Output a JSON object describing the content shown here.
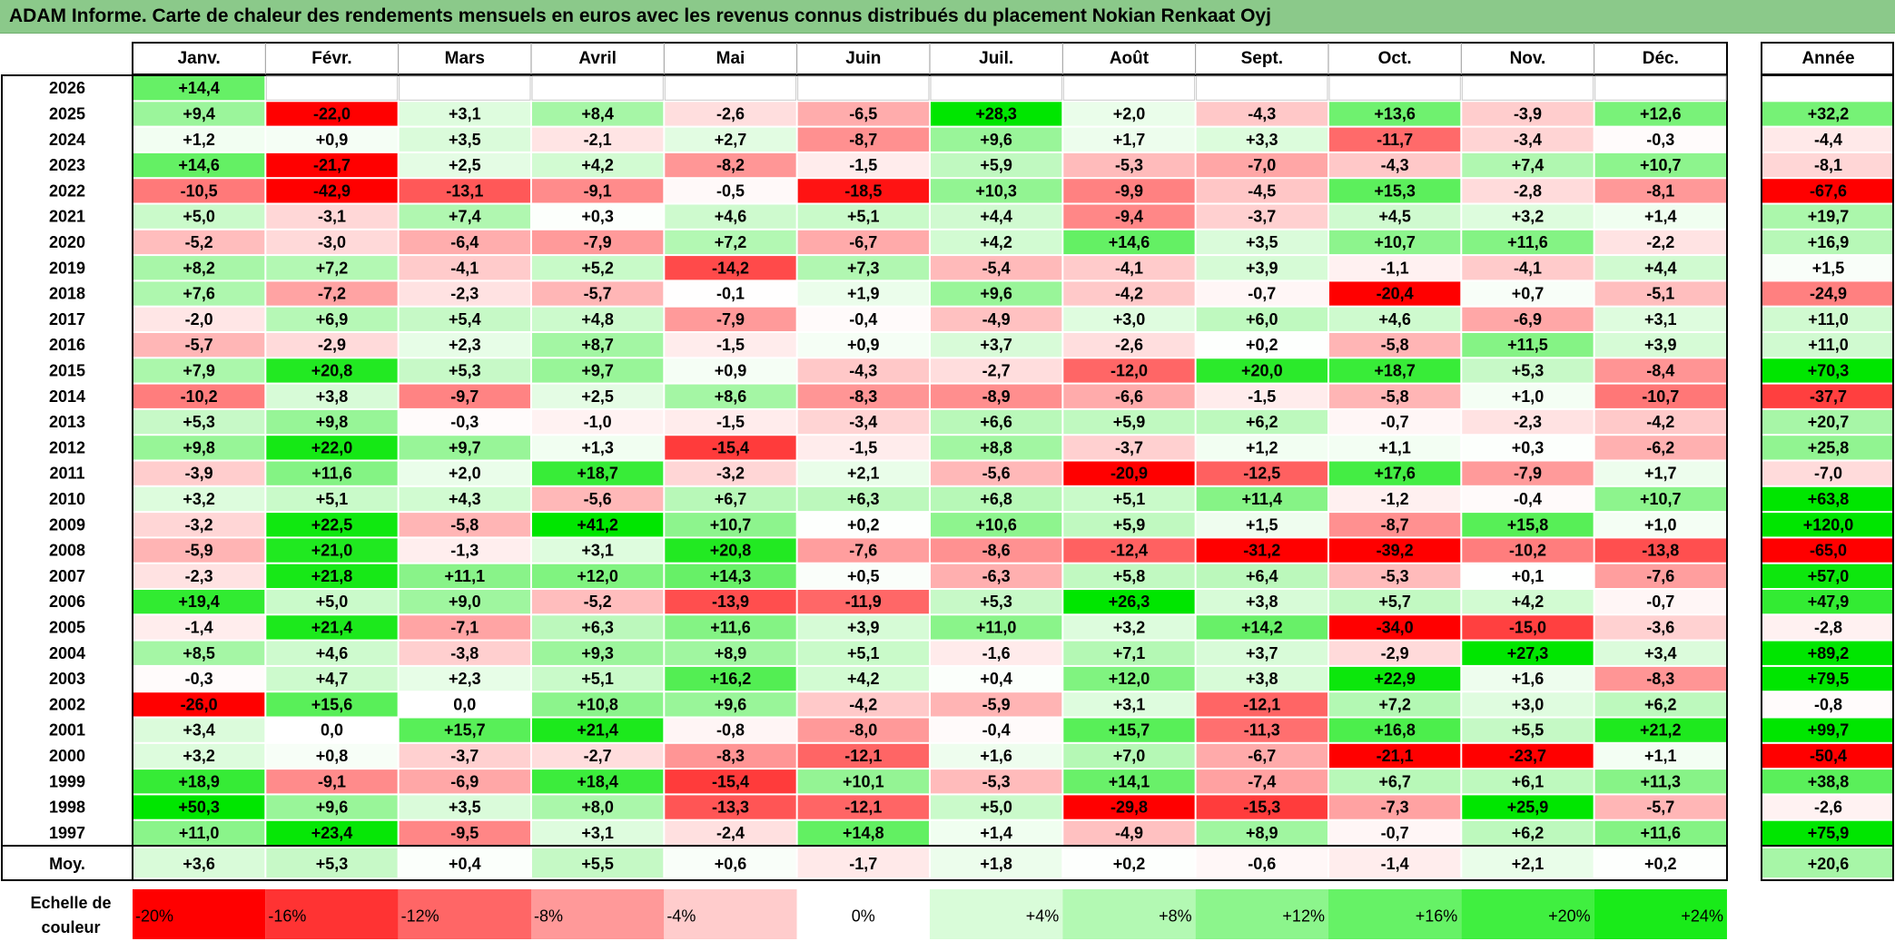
{
  "title": "ADAM Informe. Carte de chaleur des rendements mensuels en euros avec les revenus connus distribués du placement Nokian Renkaat Oyj",
  "chart_data": {
    "type": "heatmap",
    "months": [
      "Janv.",
      "Févr.",
      "Mars",
      "Avril",
      "Mai",
      "Juin",
      "Juil.",
      "Août",
      "Sept.",
      "Oct.",
      "Nov.",
      "Déc."
    ],
    "year_header": "Année",
    "rows": [
      {
        "year": "2026",
        "months": [
          "+14,4",
          null,
          null,
          null,
          null,
          null,
          null,
          null,
          null,
          null,
          null,
          null
        ],
        "annual": null
      },
      {
        "year": "2025",
        "months": [
          "+9,4",
          "-22,0",
          "+3,1",
          "+8,4",
          "-2,6",
          "-6,5",
          "+28,3",
          "+2,0",
          "-4,3",
          "+13,6",
          "-3,9",
          "+12,6"
        ],
        "annual": "+32,2"
      },
      {
        "year": "2024",
        "months": [
          "+1,2",
          "+0,9",
          "+3,5",
          "-2,1",
          "+2,7",
          "-8,7",
          "+9,6",
          "+1,7",
          "+3,3",
          "-11,7",
          "-3,4",
          "-0,3"
        ],
        "annual": "-4,4"
      },
      {
        "year": "2023",
        "months": [
          "+14,6",
          "-21,7",
          "+2,5",
          "+4,2",
          "-8,2",
          "-1,5",
          "+5,9",
          "-5,3",
          "-7,0",
          "-4,3",
          "+7,4",
          "+10,7"
        ],
        "annual": "-8,1"
      },
      {
        "year": "2022",
        "months": [
          "-10,5",
          "-42,9",
          "-13,1",
          "-9,1",
          "-0,5",
          "-18,5",
          "+10,3",
          "-9,9",
          "-4,5",
          "+15,3",
          "-2,8",
          "-8,1"
        ],
        "annual": "-67,6"
      },
      {
        "year": "2021",
        "months": [
          "+5,0",
          "-3,1",
          "+7,4",
          "+0,3",
          "+4,6",
          "+5,1",
          "+4,4",
          "-9,4",
          "-3,7",
          "+4,5",
          "+3,2",
          "+1,4"
        ],
        "annual": "+19,7"
      },
      {
        "year": "2020",
        "months": [
          "-5,2",
          "-3,0",
          "-6,4",
          "-7,9",
          "+7,2",
          "-6,7",
          "+4,2",
          "+14,6",
          "+3,5",
          "+10,7",
          "+11,6",
          "-2,2"
        ],
        "annual": "+16,9"
      },
      {
        "year": "2019",
        "months": [
          "+8,2",
          "+7,2",
          "-4,1",
          "+5,2",
          "-14,2",
          "+7,3",
          "-5,4",
          "-4,1",
          "+3,9",
          "-1,1",
          "-4,1",
          "+4,4"
        ],
        "annual": "+1,5"
      },
      {
        "year": "2018",
        "months": [
          "+7,6",
          "-7,2",
          "-2,3",
          "-5,7",
          "-0,1",
          "+1,9",
          "+9,6",
          "-4,2",
          "-0,7",
          "-20,4",
          "+0,7",
          "-5,1"
        ],
        "annual": "-24,9"
      },
      {
        "year": "2017",
        "months": [
          "-2,0",
          "+6,9",
          "+5,4",
          "+4,8",
          "-7,9",
          "-0,4",
          "-4,9",
          "+3,0",
          "+6,0",
          "+4,6",
          "-6,9",
          "+3,1"
        ],
        "annual": "+11,0"
      },
      {
        "year": "2016",
        "months": [
          "-5,7",
          "-2,9",
          "+2,3",
          "+8,7",
          "-1,5",
          "+0,9",
          "+3,7",
          "-2,6",
          "+0,2",
          "-5,8",
          "+11,5",
          "+3,9"
        ],
        "annual": "+11,0"
      },
      {
        "year": "2015",
        "months": [
          "+7,9",
          "+20,8",
          "+5,3",
          "+9,7",
          "+0,9",
          "-4,3",
          "-2,7",
          "-12,0",
          "+20,0",
          "+18,7",
          "+5,3",
          "-8,4"
        ],
        "annual": "+70,3"
      },
      {
        "year": "2014",
        "months": [
          "-10,2",
          "+3,8",
          "-9,7",
          "+2,5",
          "+8,6",
          "-8,3",
          "-8,9",
          "-6,6",
          "-1,5",
          "-5,8",
          "+1,0",
          "-10,7"
        ],
        "annual": "-37,7"
      },
      {
        "year": "2013",
        "months": [
          "+5,3",
          "+9,8",
          "-0,3",
          "-1,0",
          "-1,5",
          "-3,4",
          "+6,6",
          "+5,9",
          "+6,2",
          "-0,7",
          "-2,3",
          "-4,2"
        ],
        "annual": "+20,7"
      },
      {
        "year": "2012",
        "months": [
          "+9,8",
          "+22,0",
          "+9,7",
          "+1,3",
          "-15,4",
          "-1,5",
          "+8,8",
          "-3,7",
          "+1,2",
          "+1,1",
          "+0,3",
          "-6,2"
        ],
        "annual": "+25,8"
      },
      {
        "year": "2011",
        "months": [
          "-3,9",
          "+11,6",
          "+2,0",
          "+18,7",
          "-3,2",
          "+2,1",
          "-5,6",
          "-20,9",
          "-12,5",
          "+17,6",
          "-7,9",
          "+1,7"
        ],
        "annual": "-7,0"
      },
      {
        "year": "2010",
        "months": [
          "+3,2",
          "+5,1",
          "+4,3",
          "-5,6",
          "+6,7",
          "+6,3",
          "+6,8",
          "+5,1",
          "+11,4",
          "-1,2",
          "-0,4",
          "+10,7"
        ],
        "annual": "+63,8"
      },
      {
        "year": "2009",
        "months": [
          "-3,2",
          "+22,5",
          "-5,8",
          "+41,2",
          "+10,7",
          "+0,2",
          "+10,6",
          "+5,9",
          "+1,5",
          "-8,7",
          "+15,8",
          "+1,0"
        ],
        "annual": "+120,0"
      },
      {
        "year": "2008",
        "months": [
          "-5,9",
          "+21,0",
          "-1,3",
          "+3,1",
          "+20,8",
          "-7,6",
          "-8,6",
          "-12,4",
          "-31,2",
          "-39,2",
          "-10,2",
          "-13,8"
        ],
        "annual": "-65,0"
      },
      {
        "year": "2007",
        "months": [
          "-2,3",
          "+21,8",
          "+11,1",
          "+12,0",
          "+14,3",
          "+0,5",
          "-6,3",
          "+5,8",
          "+6,4",
          "-5,3",
          "+0,1",
          "-7,6"
        ],
        "annual": "+57,0"
      },
      {
        "year": "2006",
        "months": [
          "+19,4",
          "+5,0",
          "+9,0",
          "-5,2",
          "-13,9",
          "-11,9",
          "+5,3",
          "+26,3",
          "+3,8",
          "+5,7",
          "+4,2",
          "-0,7"
        ],
        "annual": "+47,9"
      },
      {
        "year": "2005",
        "months": [
          "-1,4",
          "+21,4",
          "-7,1",
          "+6,3",
          "+11,6",
          "+3,9",
          "+11,0",
          "+3,2",
          "+14,2",
          "-34,0",
          "-15,0",
          "-3,6"
        ],
        "annual": "-2,8"
      },
      {
        "year": "2004",
        "months": [
          "+8,5",
          "+4,6",
          "-3,8",
          "+9,3",
          "+8,9",
          "+5,1",
          "-1,6",
          "+7,1",
          "+3,7",
          "-2,9",
          "+27,3",
          "+3,4"
        ],
        "annual": "+89,2"
      },
      {
        "year": "2003",
        "months": [
          "-0,3",
          "+4,7",
          "+2,3",
          "+5,1",
          "+16,2",
          "+4,2",
          "+0,4",
          "+12,0",
          "+3,8",
          "+22,9",
          "+1,6",
          "-8,3"
        ],
        "annual": "+79,5"
      },
      {
        "year": "2002",
        "months": [
          "-26,0",
          "+15,6",
          "0,0",
          "+10,8",
          "+9,6",
          "-4,2",
          "-5,9",
          "+3,1",
          "-12,1",
          "+7,2",
          "+3,0",
          "+6,2"
        ],
        "annual": "-0,8"
      },
      {
        "year": "2001",
        "months": [
          "+3,4",
          "0,0",
          "+15,7",
          "+21,4",
          "-0,8",
          "-8,0",
          "-0,4",
          "+15,7",
          "-11,3",
          "+16,8",
          "+5,5",
          "+21,2"
        ],
        "annual": "+99,7"
      },
      {
        "year": "2000",
        "months": [
          "+3,2",
          "+0,8",
          "-3,7",
          "-2,7",
          "-8,3",
          "-12,1",
          "+1,6",
          "+7,0",
          "-6,7",
          "-21,1",
          "-23,7",
          "+1,1"
        ],
        "annual": "-50,4"
      },
      {
        "year": "1999",
        "months": [
          "+18,9",
          "-9,1",
          "-6,9",
          "+18,4",
          "-15,4",
          "+10,1",
          "-5,3",
          "+14,1",
          "-7,4",
          "+6,7",
          "+6,1",
          "+11,3"
        ],
        "annual": "+38,8"
      },
      {
        "year": "1998",
        "months": [
          "+50,3",
          "+9,6",
          "+3,5",
          "+8,0",
          "-13,3",
          "-12,1",
          "+5,0",
          "-29,8",
          "-15,3",
          "-7,3",
          "+25,9",
          "-5,7"
        ],
        "annual": "-2,6"
      },
      {
        "year": "1997",
        "months": [
          "+11,0",
          "+23,4",
          "-9,5",
          "+3,1",
          "-2,4",
          "+14,8",
          "+1,4",
          "-4,9",
          "+8,9",
          "-0,7",
          "+6,2",
          "+11,6"
        ],
        "annual": "+75,9"
      }
    ],
    "average": {
      "label": "Moy.",
      "months": [
        "+3,6",
        "+5,3",
        "+0,4",
        "+5,5",
        "+0,6",
        "-1,7",
        "+1,8",
        "+0,2",
        "-0,6",
        "-1,4",
        "+2,1",
        "+0,2"
      ],
      "annual": "+20,6"
    },
    "scale": {
      "label_line1": "Echelle de",
      "label_line2": "couleur",
      "steps": [
        {
          "label": "-20%",
          "value": -20,
          "color": "#ff0000"
        },
        {
          "label": "-16%",
          "value": -16,
          "color": "#ff3333"
        },
        {
          "label": "-12%",
          "value": -12,
          "color": "#ff6666"
        },
        {
          "label": "-8%",
          "value": -8,
          "color": "#ff9999"
        },
        {
          "label": "-4%",
          "value": -4,
          "color": "#ffcccc"
        },
        {
          "label": "0%",
          "value": 0,
          "color": "#ffffff"
        },
        {
          "label": "+4%",
          "value": 4,
          "color": "#d9fcd9"
        },
        {
          "label": "+8%",
          "value": 8,
          "color": "#b3f9b3"
        },
        {
          "label": "+12%",
          "value": 12,
          "color": "#8cf58c"
        },
        {
          "label": "+16%",
          "value": 16,
          "color": "#66f266"
        },
        {
          "label": "+20%",
          "value": 20,
          "color": "#40ef40"
        },
        {
          "label": "+24%",
          "value": 24,
          "color": "#19eb19"
        }
      ]
    },
    "colors": {
      "negative_max": "#ff0000",
      "neutral": "#ffffff",
      "positive_max": "#00e600",
      "title_bar": "#8bc98a"
    }
  }
}
